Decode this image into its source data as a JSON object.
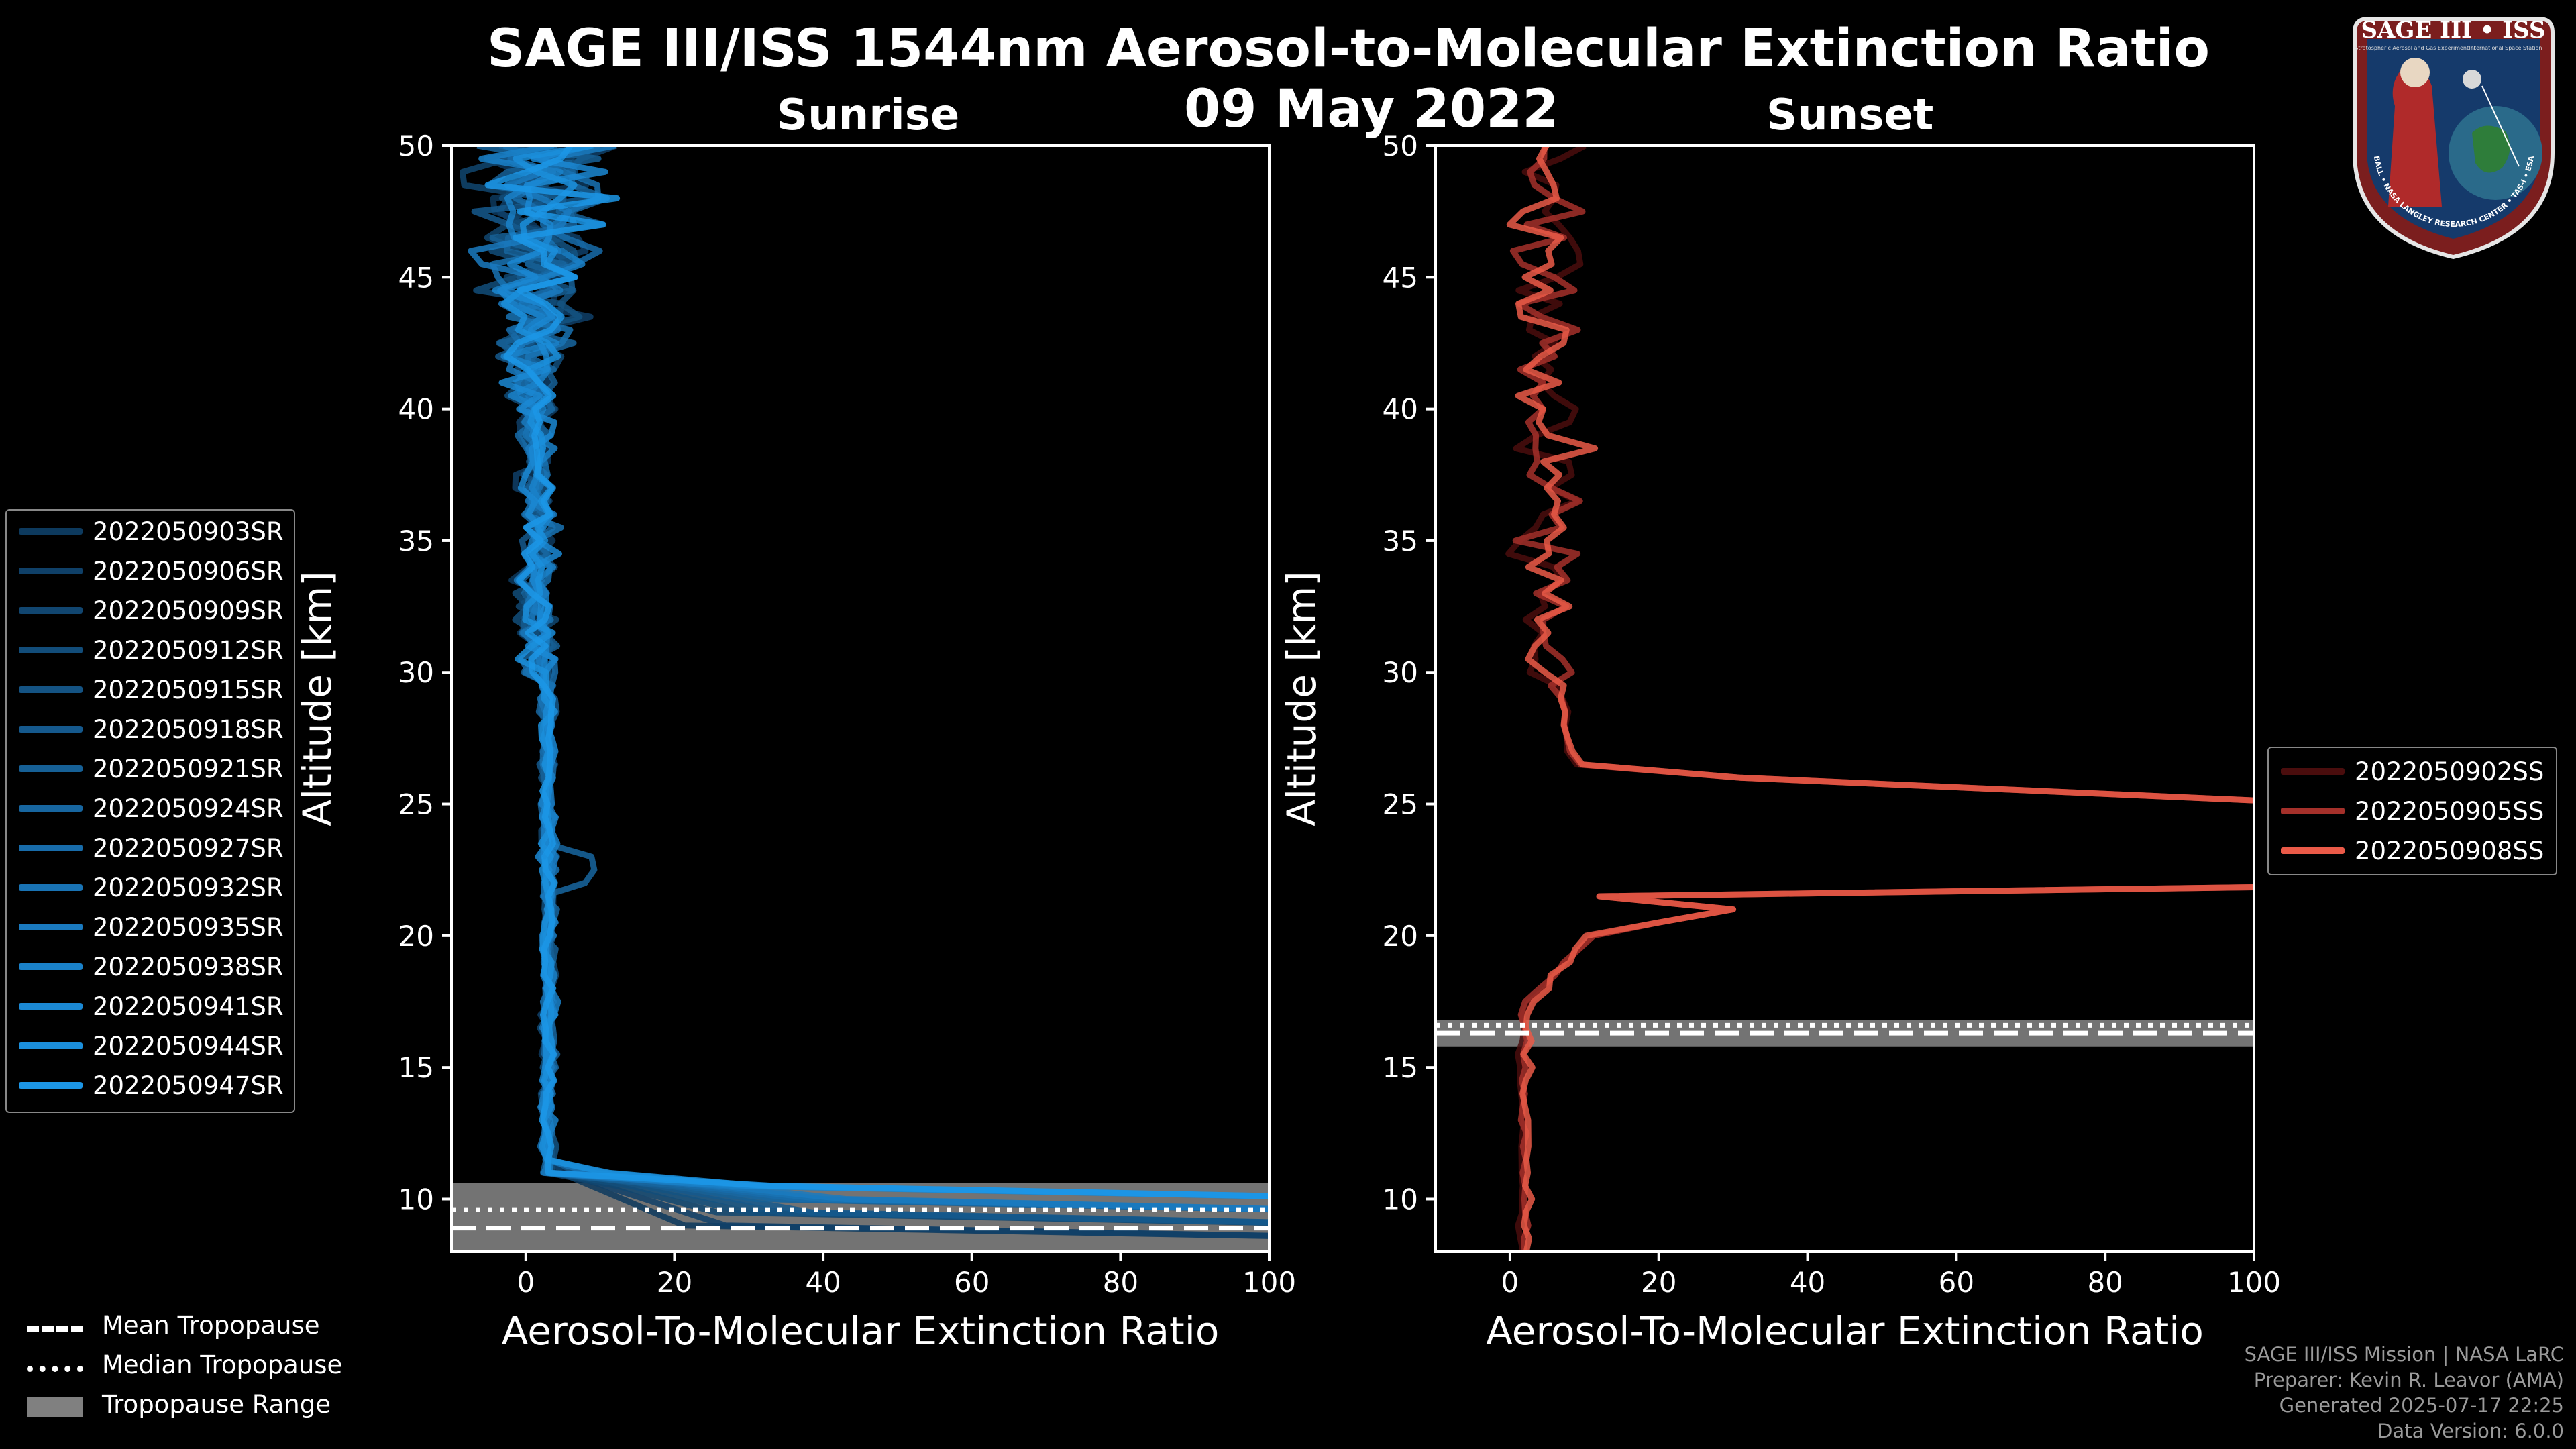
{
  "header": {
    "title": "SAGE III/ISS 1544nm Aerosol-to-Molecular Extinction Ratio",
    "date": "09 May 2022"
  },
  "chart_data": [
    {
      "type": "line",
      "title": "Sunrise",
      "xlabel": "Aerosol-To-Molecular Extinction Ratio",
      "ylabel": "Altitude [km]",
      "xlim": [
        -10,
        100
      ],
      "ylim": [
        8,
        50
      ],
      "xticks": [
        "0",
        "20",
        "40",
        "60",
        "80",
        "100"
      ],
      "yticks": [
        "10",
        "15",
        "20",
        "25",
        "30",
        "35",
        "40",
        "45",
        "50"
      ],
      "tropopause": {
        "mean": 8.9,
        "median": 9.6,
        "range": [
          8.0,
          10.6
        ]
      },
      "series": [
        {
          "name": "2022050903SR",
          "color": "#0d3a5e"
        },
        {
          "name": "2022050906SR",
          "color": "#0f4068"
        },
        {
          "name": "2022050909SR",
          "color": "#114670"
        },
        {
          "name": "2022050912SR",
          "color": "#124d7a"
        },
        {
          "name": "2022050915SR",
          "color": "#145383"
        },
        {
          "name": "2022050918SR",
          "color": "#15598d"
        },
        {
          "name": "2022050921SR",
          "color": "#166096"
        },
        {
          "name": "2022050924SR",
          "color": "#1766a0"
        },
        {
          "name": "2022050927SR",
          "color": "#186caa"
        },
        {
          "name": "2022050932SR",
          "color": "#1973b4"
        },
        {
          "name": "2022050935SR",
          "color": "#1a7abf"
        },
        {
          "name": "2022050938SR",
          "color": "#1a81c9"
        },
        {
          "name": "2022050941SR",
          "color": "#1b88d3"
        },
        {
          "name": "2022050944SR",
          "color": "#1b8fdc"
        },
        {
          "name": "2022050947SR",
          "color": "#1c96e6"
        }
      ]
    },
    {
      "type": "line",
      "title": "Sunset",
      "xlabel": "Aerosol-To-Molecular Extinction Ratio",
      "ylabel": "Altitude [km]",
      "xlim": [
        -10,
        100
      ],
      "ylim": [
        8,
        50
      ],
      "xticks": [
        "0",
        "20",
        "40",
        "60",
        "80",
        "100"
      ],
      "yticks": [
        "10",
        "15",
        "20",
        "25",
        "30",
        "35",
        "40",
        "45",
        "50"
      ],
      "tropopause": {
        "mean": 16.3,
        "median": 16.6,
        "range": [
          15.8,
          16.8
        ]
      },
      "series": [
        {
          "name": "2022050902SS",
          "color": "#4a0d0d"
        },
        {
          "name": "2022050905SS",
          "color": "#a4302a"
        },
        {
          "name": "2022050908SS",
          "color": "#ea5a48"
        }
      ]
    }
  ],
  "tropopause_legend": {
    "mean": "Mean Tropopause",
    "median": "Median Tropopause",
    "range": "Tropopause Range"
  },
  "logo": {
    "title": "SAGE III • ISS",
    "subtitle": "Stratospheric Aerosol and Gas Experiment III",
    "subtitle2": "International Space Station",
    "ring_text": "BALL • NASA LANGLEY RESEARCH CENTER • TAS-I • ESA"
  },
  "credits": {
    "line1": "SAGE III/ISS Mission | NASA LaRC",
    "line2": "Preparer: Kevin R. Leavor (AMA)",
    "line3": "Generated 2025-07-17 22:25",
    "line4": "Data Version: 6.0.0"
  },
  "colors": {
    "background": "#000000",
    "tropopause_range": "#808080",
    "sunrise_accent": "#1c96e6",
    "sunset_accent": "#ea5a48"
  }
}
